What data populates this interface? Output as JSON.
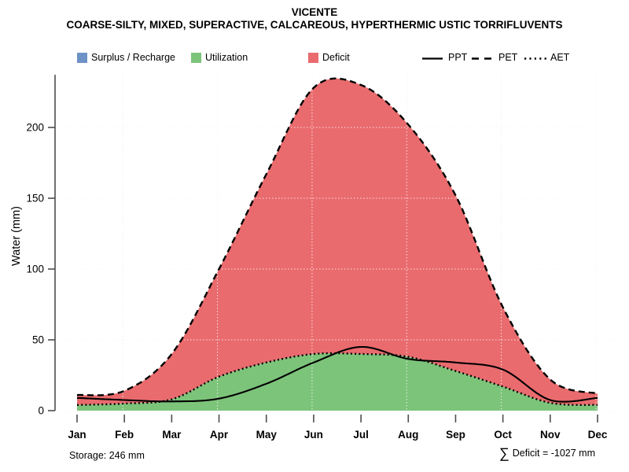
{
  "title": "VICENTE",
  "subtitle": "COARSE-SILTY, MIXED, SUPERACTIVE, CALCAREOUS, HYPERTHERMIC USTIC TORRIFLUVENTS",
  "legend": {
    "fills": [
      {
        "label": "Surplus / Recharge",
        "color": "#6E92C5"
      },
      {
        "label": "Utilization",
        "color": "#7CC47A"
      },
      {
        "label": "Deficit",
        "color": "#E96B6E"
      }
    ],
    "lines": [
      {
        "label": "PPT",
        "style": "solid"
      },
      {
        "label": "PET",
        "style": "dashed"
      },
      {
        "label": "AET",
        "style": "dotted"
      }
    ],
    "line_color": "#000000"
  },
  "chart_data": {
    "type": "area",
    "categories": [
      "Jan",
      "Feb",
      "Mar",
      "Apr",
      "May",
      "Jun",
      "Jul",
      "Aug",
      "Sep",
      "Oct",
      "Nov",
      "Dec"
    ],
    "series": [
      {
        "name": "PPT",
        "line_style": "solid",
        "color": "#000000",
        "values": [
          9,
          7.5,
          6.5,
          8.5,
          19,
          34,
          45,
          36.5,
          34,
          29,
          7.5,
          9
        ]
      },
      {
        "name": "PET",
        "line_style": "dashed",
        "color": "#000000",
        "values": [
          11,
          14,
          40,
          100,
          167,
          228,
          230,
          202,
          152,
          73,
          22,
          12
        ]
      },
      {
        "name": "AET",
        "line_style": "dotted",
        "color": "#000000",
        "values": [
          4,
          5,
          8,
          24,
          34,
          40,
          40,
          38,
          28,
          17,
          5.5,
          4
        ]
      }
    ],
    "areas": [
      {
        "name": "Deficit",
        "between": [
          "AET",
          "PET"
        ],
        "color": "#E96B6E"
      },
      {
        "name": "Utilization",
        "between": [
          "0",
          "AET"
        ],
        "color": "#7CC47A"
      }
    ],
    "xlabel": "",
    "ylabel": "Water (mm)",
    "yticks": [
      0,
      50,
      100,
      150,
      200
    ],
    "ylim": [
      0,
      240
    ],
    "grid": true,
    "grid_vertical_at": [
      "Feb",
      "Apr",
      "Jun",
      "Aug",
      "Oct",
      "Dec"
    ],
    "smoothing": "spline",
    "legend_position": "top"
  },
  "footer": {
    "storage": "Storage: 246 mm",
    "deficit_sigma": "∑",
    "deficit_text": "Deficit = -1027 mm"
  },
  "colors": {
    "axis": "#4D4D4D",
    "grid": "#DCDCDC",
    "grid_over_fill": "rgba(255,255,255,0.8)",
    "text": "#000000",
    "background": "#FFFFFF"
  }
}
